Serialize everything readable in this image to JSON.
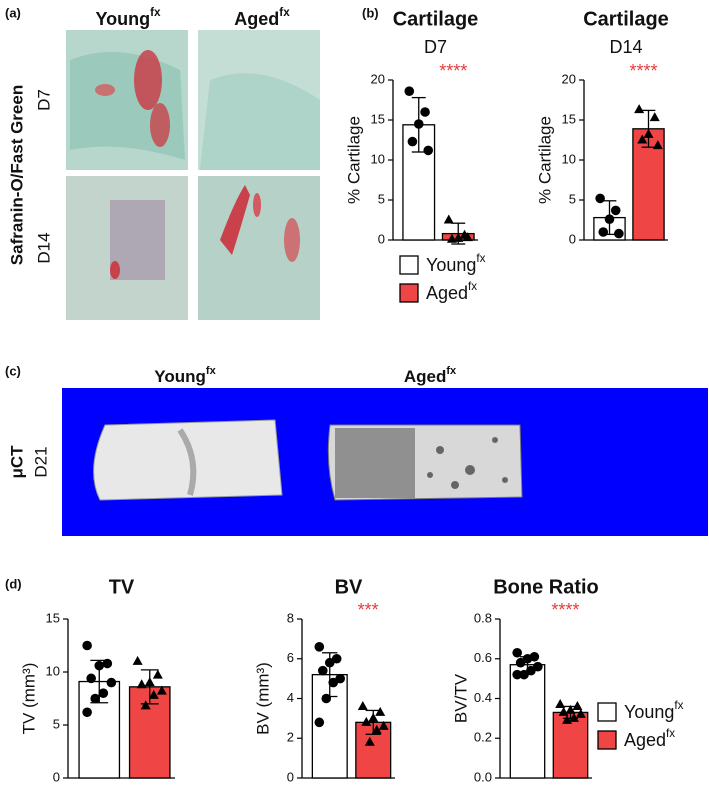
{
  "panels": {
    "a": "(a)",
    "b": "(b)",
    "c": "(c)",
    "d": "(d)"
  },
  "histology": {
    "stain": "Safranin-O/Fast Green",
    "columns": [
      {
        "name": "Young",
        "sup": "fx"
      },
      {
        "name": "Aged",
        "sup": "fx"
      }
    ],
    "rows": [
      "D7",
      "D14"
    ]
  },
  "microct": {
    "method": "μCT",
    "row": "D21",
    "columns": [
      {
        "name": "Young",
        "sup": "fx"
      },
      {
        "name": "Aged",
        "sup": "fx"
      }
    ]
  },
  "chart_data": [
    {
      "type": "bar",
      "title": "Cartilage",
      "subtitle": "D7",
      "y_label": "% Cartilage",
      "ylim": [
        0,
        20
      ],
      "yticks": [
        0,
        5,
        10,
        15,
        20
      ],
      "annotation": {
        "text": "****",
        "color": "#e83a3a"
      },
      "legend": false,
      "series": [
        {
          "color": "#ffffff",
          "marker": "circle",
          "value": 14.4,
          "error": 3.4,
          "points": [
            18.6,
            16.0,
            14.5,
            12.3,
            11.2
          ]
        },
        {
          "color": "#f04545",
          "marker": "triangle",
          "value": 0.8,
          "error": 1.3,
          "points": [
            2.5,
            0.6,
            0.2,
            0.1,
            0.3
          ]
        }
      ]
    },
    {
      "type": "bar",
      "title": "Cartilage",
      "subtitle": "D14",
      "y_label": "% Cartilage",
      "ylim": [
        0,
        20
      ],
      "yticks": [
        0,
        5,
        10,
        15,
        20
      ],
      "annotation": {
        "text": "****",
        "color": "#e83a3a"
      },
      "legend": true,
      "series": [
        {
          "name": "Young",
          "name_sup": "fx",
          "color": "#ffffff",
          "marker": "circle",
          "value": 2.8,
          "error": 2.1,
          "points": [
            5.2,
            3.7,
            2.6,
            1.0,
            0.8
          ]
        },
        {
          "name": "Aged",
          "name_sup": "fx",
          "color": "#f04545",
          "marker": "triangle",
          "value": 13.9,
          "error": 2.3,
          "points": [
            16.3,
            15.3,
            13.2,
            12.5,
            11.8
          ]
        }
      ]
    },
    {
      "type": "bar",
      "title": "TV",
      "y_label": "TV (mm³)",
      "ylim": [
        0,
        15
      ],
      "yticks": [
        0,
        5,
        10,
        15
      ],
      "legend": false,
      "series": [
        {
          "color": "#ffffff",
          "marker": "circle",
          "value": 9.1,
          "error": 2.0,
          "points": [
            12.5,
            10.8,
            10.6,
            9.4,
            9.0,
            8.0,
            7.5,
            6.2
          ]
        },
        {
          "color": "#f04545",
          "marker": "triangle",
          "value": 8.6,
          "error": 1.6,
          "points": [
            11.0,
            9.7,
            9.0,
            8.8,
            8.2,
            7.8,
            6.8
          ]
        }
      ]
    },
    {
      "type": "bar",
      "title": "BV",
      "y_label": "BV (mm³)",
      "ylim": [
        0,
        8
      ],
      "yticks": [
        0,
        2,
        4,
        6,
        8
      ],
      "annotation": {
        "text": "***",
        "color": "#e83a3a"
      },
      "legend": false,
      "series": [
        {
          "color": "#ffffff",
          "marker": "circle",
          "value": 5.2,
          "error": 1.1,
          "points": [
            6.6,
            6.0,
            5.8,
            5.4,
            5.0,
            4.8,
            4.0,
            2.8
          ]
        },
        {
          "color": "#f04545",
          "marker": "triangle",
          "value": 2.8,
          "error": 0.6,
          "points": [
            3.6,
            3.3,
            3.0,
            2.8,
            2.6,
            2.4,
            1.8
          ]
        }
      ]
    },
    {
      "type": "bar",
      "title": "Bone Ratio",
      "y_label": "BV/TV",
      "ylim": [
        0,
        0.8
      ],
      "yticks": [
        {
          "value": 0,
          "label": "0.0"
        },
        {
          "value": 0.2,
          "label": "0.2"
        },
        {
          "value": 0.4,
          "label": "0.4"
        },
        {
          "value": 0.6,
          "label": "0.6"
        },
        {
          "value": 0.8,
          "label": "0.8"
        }
      ],
      "annotation": {
        "text": "****",
        "color": "#e83a3a"
      },
      "legend": true,
      "series": [
        {
          "name": "Young",
          "name_sup": "fx",
          "color": "#ffffff",
          "marker": "circle",
          "value": 0.57,
          "error": 0.04,
          "points": [
            0.63,
            0.61,
            0.6,
            0.58,
            0.56,
            0.54,
            0.52,
            0.52
          ]
        },
        {
          "name": "Aged",
          "name_sup": "fx",
          "color": "#f04545",
          "marker": "triangle",
          "value": 0.33,
          "error": 0.03,
          "points": [
            0.37,
            0.36,
            0.34,
            0.33,
            0.32,
            0.3,
            0.29
          ]
        }
      ]
    }
  ]
}
